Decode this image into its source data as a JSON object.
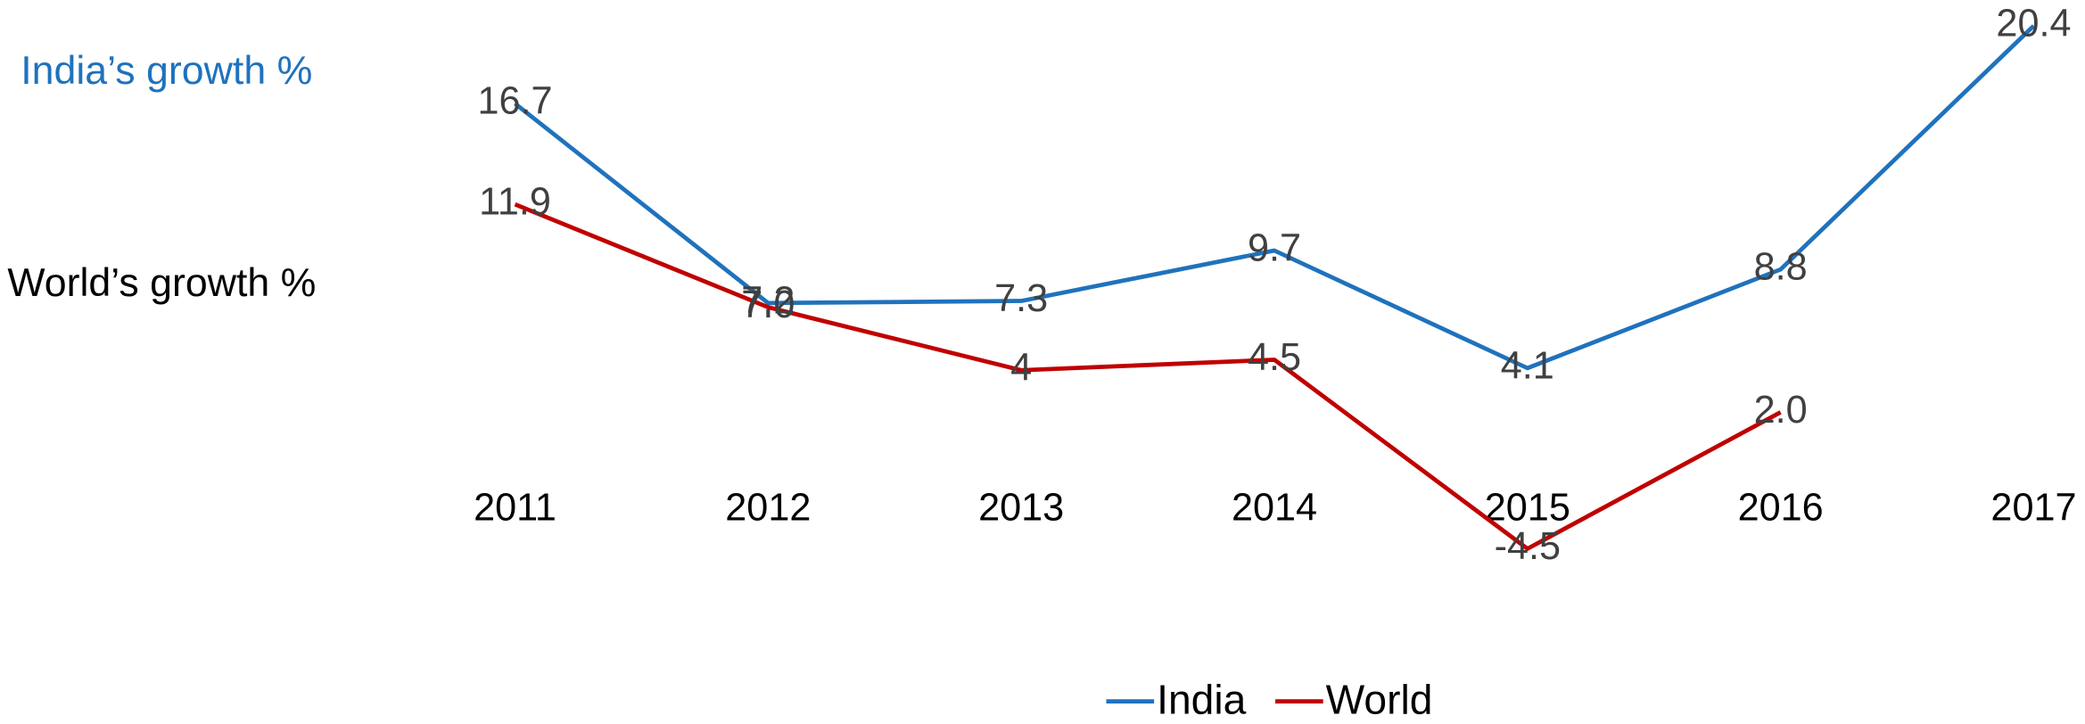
{
  "chart_data": {
    "type": "line",
    "categories": [
      "2011",
      "2012",
      "2013",
      "2014",
      "2015",
      "2016",
      "2017"
    ],
    "series": [
      {
        "name": "India",
        "color": "#1f72bd",
        "values": [
          16.7,
          7.2,
          7.3,
          9.7,
          4.1,
          8.8,
          20.4
        ],
        "value_labels": [
          "16.7",
          "7.2",
          "7.3",
          "9.7",
          "4.1",
          "8.8",
          "20.4"
        ]
      },
      {
        "name": "World",
        "color": "#c00000",
        "values": [
          11.9,
          7.0,
          4,
          4.5,
          -4.5,
          2.0,
          null
        ],
        "value_labels": [
          "11.9",
          "7.0",
          "4",
          "4.5",
          "-4.5",
          "2.0",
          null
        ]
      }
    ],
    "annotations": [
      {
        "text": "India’s growth %",
        "color": "#1f72bd"
      },
      {
        "text": "World’s growth %",
        "color": "#000000"
      }
    ],
    "ylim": [
      -10,
      20
    ],
    "legend": "bottom"
  }
}
